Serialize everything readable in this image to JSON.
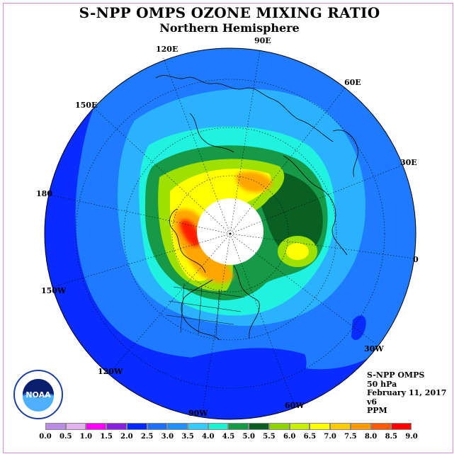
{
  "title": "S-NPP OMPS OZONE MIXING RATIO",
  "subtitle": "Northern Hemisphere",
  "longitude_labels": {
    "e120": "120E",
    "e90": "90E",
    "e60": "60E",
    "e30": "30E",
    "e150": "150E",
    "d180": "180",
    "zero": "0",
    "w150": "150W",
    "w120": "120W",
    "w90": "90W",
    "w60": "60W",
    "w30": "30W"
  },
  "info": {
    "instrument": "S-NPP OMPS",
    "level": "50 hPa",
    "date": "February 11, 2017",
    "version": "v6",
    "units": "PPM"
  },
  "logo_text": "NOAA",
  "colorbar": {
    "ticks": [
      "0.0",
      "0.5",
      "1.0",
      "1.5",
      "2.0",
      "2.5",
      "3.0",
      "3.5",
      "4.0",
      "4.5",
      "5.0",
      "5.5",
      "6.0",
      "6.5",
      "7.0",
      "7.5",
      "8.0",
      "8.5",
      "9.0"
    ],
    "colors": [
      "#b98ae6",
      "#e1b2ef",
      "#ff00ff",
      "#8a1fe0",
      "#0028ff",
      "#1f6fff",
      "#1e90ff",
      "#33ccff",
      "#1ef2d2",
      "#169a46",
      "#0a5e22",
      "#8fd400",
      "#c8ee00",
      "#ffff00",
      "#ffcc00",
      "#ff9a00",
      "#ff5a00",
      "#ff0000",
      "#8b5a2b"
    ]
  },
  "map_colors": {
    "ocean_blue": "#0a2bff",
    "mid_blue": "#1e7bff",
    "sky_blue": "#2ab2ff",
    "cyan": "#20f2e0",
    "green": "#179a48",
    "dark_green": "#0a5f22",
    "lime": "#9ee000",
    "yellow": "#ffff00",
    "orange": "#ffa500",
    "red": "#ff1a00",
    "polar_cap": "#ffffff"
  }
}
